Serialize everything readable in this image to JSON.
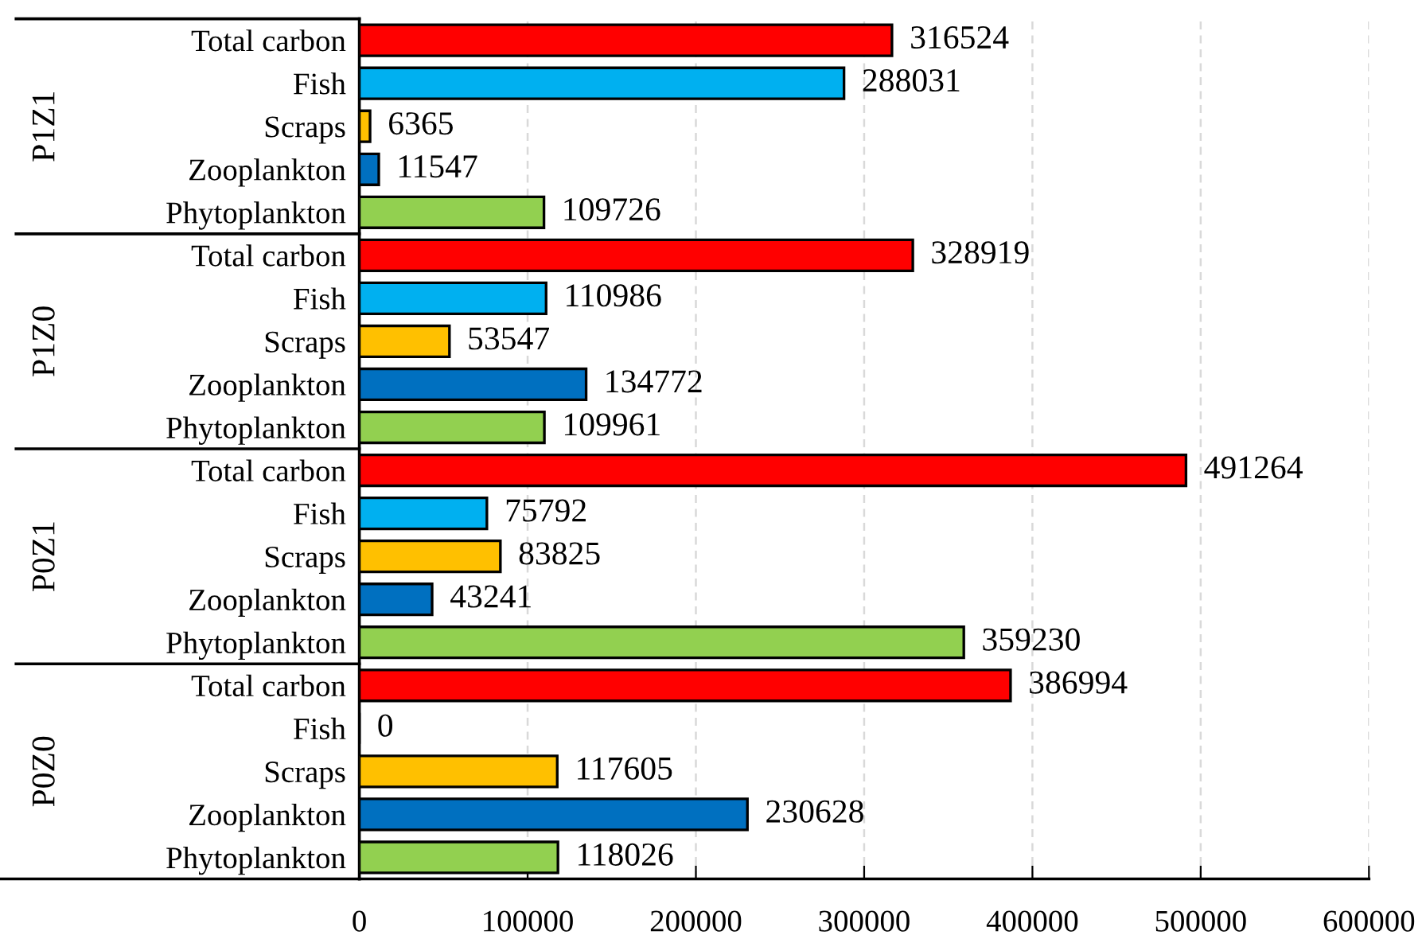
{
  "chart_data": {
    "type": "bar",
    "orientation": "horizontal",
    "categories": [
      "Total carbon",
      "Fish",
      "Scraps",
      "Zooplankton",
      "Phytoplankton",
      "Total carbon",
      "Fish",
      "Scraps",
      "Zooplankton",
      "Phytoplankton",
      "Total carbon",
      "Fish",
      "Scraps",
      "Zooplankton",
      "Phytoplankton",
      "Total carbon",
      "Fish",
      "Scraps",
      "Zooplankton",
      "Phytoplankton"
    ],
    "values": [
      316524,
      288031,
      6365,
      11547,
      109726,
      328919,
      110986,
      53547,
      134772,
      109961,
      491264,
      75792,
      83825,
      43241,
      359230,
      386994,
      0,
      117605,
      230628,
      118026
    ],
    "colors": [
      "#ff0000",
      "#00b0f0",
      "#ffc000",
      "#0070c0",
      "#92d050",
      "#ff0000",
      "#00b0f0",
      "#ffc000",
      "#0070c0",
      "#92d050",
      "#ff0000",
      "#00b0f0",
      "#ffc000",
      "#0070c0",
      "#92d050",
      "#ff0000",
      "#00b0f0",
      "#ffc000",
      "#0070c0",
      "#92d050"
    ],
    "annotations": [
      "P1Z1",
      "P1Z0",
      "P0Z1",
      "P0Z0"
    ],
    "data_labels": true,
    "xlim": [
      0,
      600000
    ],
    "xticks": [
      0,
      100000,
      200000,
      300000,
      400000,
      500000,
      600000
    ],
    "grid": "x"
  }
}
